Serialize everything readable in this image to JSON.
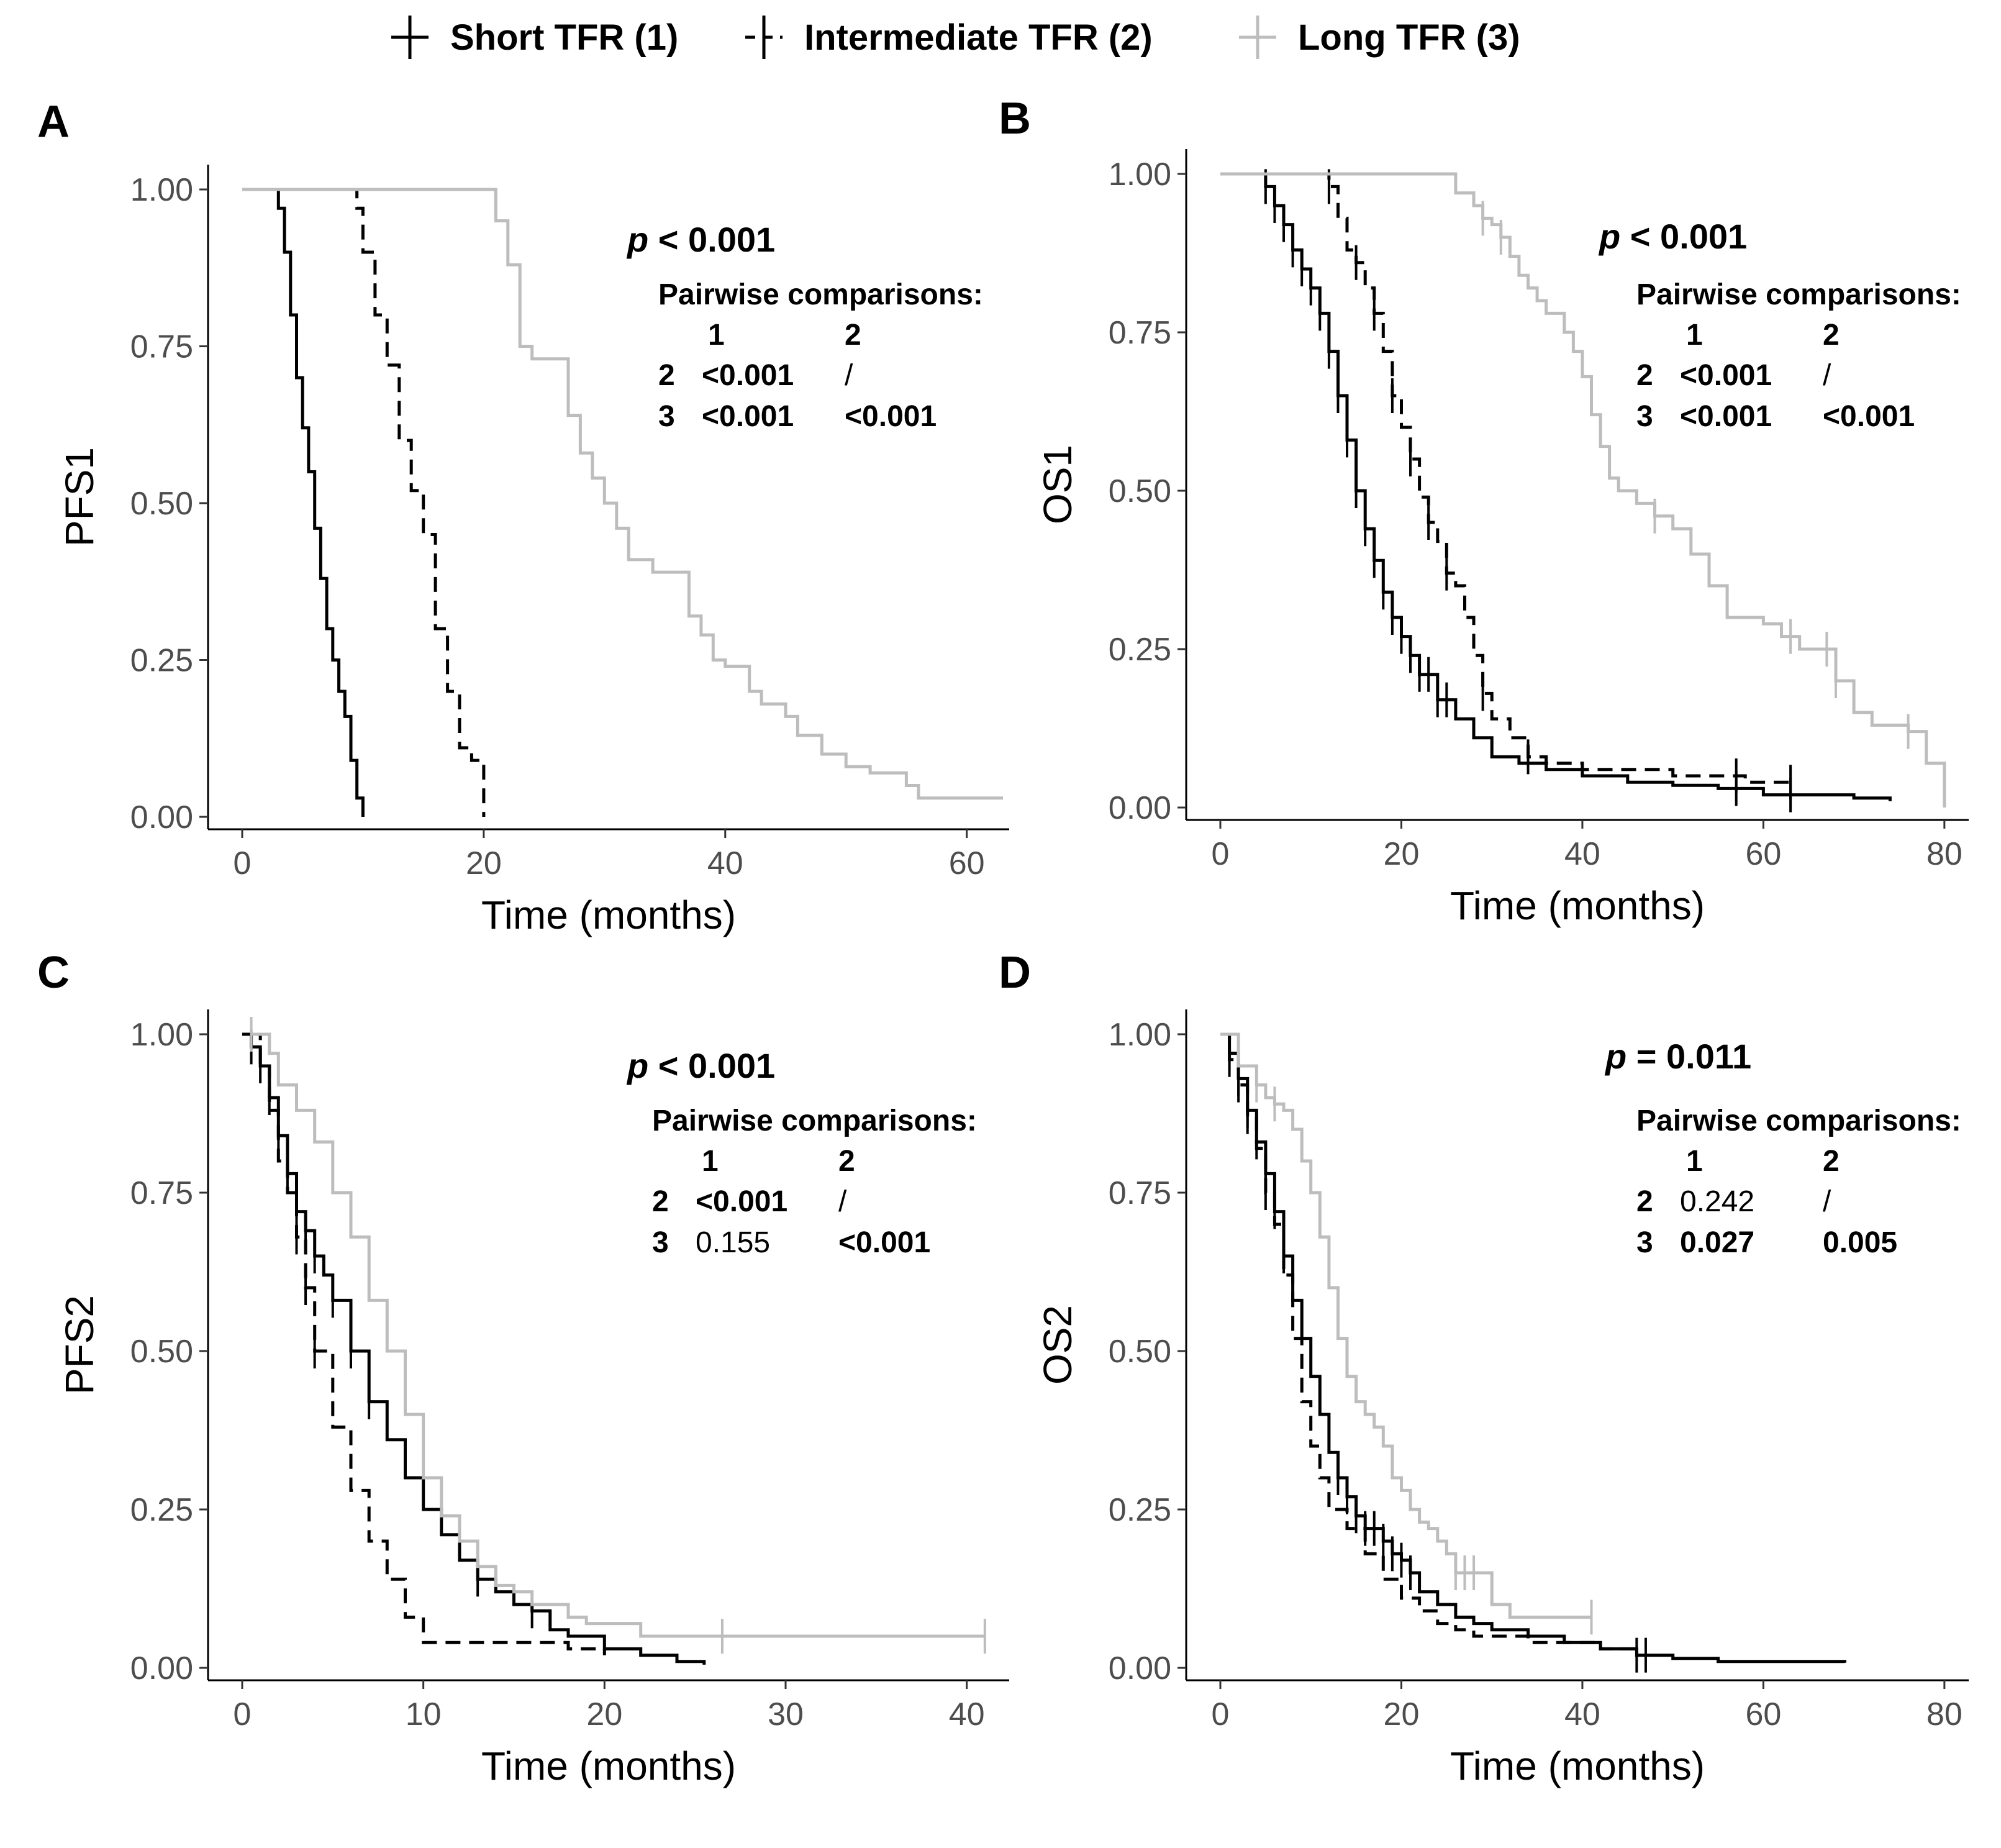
{
  "legend": [
    {
      "label": "Short TFR (1)",
      "color": "#000000",
      "dash": "solid"
    },
    {
      "label": "Intermediate TFR (2)",
      "color": "#000000",
      "dash": "dashed"
    },
    {
      "label": "Long TFR (3)",
      "color": "#bdbdbd",
      "dash": "solid"
    }
  ],
  "chart_data": [
    {
      "panel": "A",
      "type": "line",
      "title": "",
      "xlabel": "Time (months)",
      "ylabel": "PFS1",
      "xlim": [
        0,
        63
      ],
      "ylim": [
        0,
        1
      ],
      "xticks": [
        "0",
        "20",
        "40",
        "60"
      ],
      "yticks": [
        "0.00",
        "0.25",
        "0.50",
        "0.75",
        "1.00"
      ],
      "p_value": {
        "label": "p",
        "text": "< 0.001"
      },
      "pairwise": {
        "title": "Pairwise comparisons:",
        "cols": [
          "1",
          "2"
        ],
        "rows": [
          {
            "row": "2",
            "c1": "<0.001",
            "c2": "/"
          },
          {
            "row": "3",
            "c1": "<0.001",
            "c2": "<0.001"
          }
        ]
      },
      "series": [
        {
          "name": "Short TFR (1)",
          "x": [
            0,
            2.5,
            3,
            3.5,
            4,
            4.5,
            5,
            5.5,
            6,
            6.5,
            7,
            7.5,
            8,
            8.5,
            9,
            9.5,
            10
          ],
          "y": [
            1.0,
            1.0,
            0.97,
            0.9,
            0.8,
            0.7,
            0.62,
            0.55,
            0.46,
            0.38,
            0.3,
            0.25,
            0.2,
            0.16,
            0.09,
            0.03,
            0.0
          ],
          "censor_x": []
        },
        {
          "name": "Intermediate TFR (2)",
          "x": [
            9,
            9.5,
            10,
            11,
            12,
            13,
            14,
            15,
            16,
            17,
            18,
            19,
            20
          ],
          "y": [
            1.0,
            0.97,
            0.9,
            0.8,
            0.72,
            0.6,
            0.52,
            0.45,
            0.3,
            0.2,
            0.11,
            0.09,
            0.0
          ],
          "censor_x": []
        },
        {
          "name": "Long TFR (3)",
          "x": [
            0,
            20.5,
            21,
            22,
            23,
            24,
            26,
            27,
            28,
            29,
            30,
            31,
            32,
            34,
            37,
            38,
            39,
            40,
            42,
            43,
            45,
            46,
            48,
            50,
            52,
            55,
            56,
            63
          ],
          "y": [
            1.0,
            1.0,
            0.95,
            0.88,
            0.75,
            0.73,
            0.73,
            0.64,
            0.58,
            0.54,
            0.5,
            0.46,
            0.41,
            0.39,
            0.32,
            0.29,
            0.25,
            0.24,
            0.2,
            0.18,
            0.16,
            0.13,
            0.1,
            0.08,
            0.07,
            0.05,
            0.03,
            0.03
          ],
          "censor_x": []
        }
      ]
    },
    {
      "panel": "B",
      "type": "line",
      "title": "",
      "xlabel": "Time (months)",
      "ylabel": "OS1",
      "xlim": [
        0,
        82
      ],
      "ylim": [
        0,
        1
      ],
      "xticks": [
        "0",
        "20",
        "40",
        "60",
        "80"
      ],
      "yticks": [
        "0.00",
        "0.25",
        "0.50",
        "0.75",
        "1.00"
      ],
      "p_value": {
        "label": "p",
        "text": "< 0.001"
      },
      "pairwise": {
        "title": "Pairwise comparisons:",
        "cols": [
          "1",
          "2"
        ],
        "rows": [
          {
            "row": "2",
            "c1": "<0.001",
            "c2": "/"
          },
          {
            "row": "3",
            "c1": "<0.001",
            "c2": "<0.001"
          }
        ]
      },
      "series": [
        {
          "name": "Short TFR (1)",
          "x": [
            4.5,
            5,
            6,
            7,
            8,
            9,
            10,
            11,
            12,
            13,
            14,
            15,
            16,
            17,
            18,
            19,
            20,
            21,
            22,
            24,
            26,
            28,
            30,
            33,
            36,
            40,
            45,
            50,
            55,
            60,
            65,
            70,
            74
          ],
          "y": [
            1.0,
            0.98,
            0.95,
            0.92,
            0.88,
            0.85,
            0.82,
            0.78,
            0.72,
            0.65,
            0.58,
            0.5,
            0.44,
            0.39,
            0.34,
            0.3,
            0.27,
            0.24,
            0.21,
            0.17,
            0.14,
            0.11,
            0.08,
            0.07,
            0.06,
            0.05,
            0.04,
            0.035,
            0.03,
            0.02,
            0.02,
            0.015,
            0.01
          ],
          "censor_x": [
            5,
            6,
            7,
            8,
            9,
            10,
            11,
            12,
            13,
            14,
            15,
            16,
            17,
            18,
            19,
            20,
            21,
            22,
            23,
            24,
            25,
            57,
            63
          ]
        },
        {
          "name": "Intermediate TFR (2)",
          "x": [
            11,
            12,
            13,
            14,
            15,
            16,
            17,
            18,
            19,
            20,
            21,
            22,
            23,
            24,
            25,
            26,
            27,
            28,
            29,
            30,
            32,
            34,
            36,
            40,
            45,
            50,
            58,
            63
          ],
          "y": [
            1.0,
            0.98,
            0.93,
            0.88,
            0.86,
            0.82,
            0.78,
            0.72,
            0.65,
            0.6,
            0.55,
            0.49,
            0.45,
            0.42,
            0.37,
            0.35,
            0.3,
            0.24,
            0.18,
            0.14,
            0.11,
            0.08,
            0.07,
            0.06,
            0.06,
            0.05,
            0.04,
            0.04
          ],
          "censor_x": [
            12,
            15,
            17,
            19,
            21,
            23,
            25,
            29,
            34,
            57,
            63
          ]
        },
        {
          "name": "Long TFR (3)",
          "x": [
            0,
            24,
            26,
            28,
            29,
            30,
            31,
            32,
            33,
            34,
            35,
            36,
            38,
            39,
            40,
            41,
            42,
            43,
            44,
            46,
            48,
            50,
            52,
            54,
            56,
            58,
            60,
            62,
            64,
            66,
            68,
            70,
            72,
            75,
            76,
            78,
            79,
            80
          ],
          "y": [
            1.0,
            1.0,
            0.97,
            0.95,
            0.93,
            0.92,
            0.9,
            0.87,
            0.84,
            0.82,
            0.8,
            0.78,
            0.75,
            0.72,
            0.68,
            0.62,
            0.57,
            0.52,
            0.5,
            0.48,
            0.46,
            0.44,
            0.4,
            0.35,
            0.3,
            0.3,
            0.29,
            0.27,
            0.25,
            0.25,
            0.2,
            0.15,
            0.13,
            0.13,
            0.12,
            0.07,
            0.07,
            0.0
          ],
          "censor_x": [
            29,
            31,
            48,
            63,
            67,
            68,
            76
          ]
        }
      ]
    },
    {
      "panel": "C",
      "type": "line",
      "title": "",
      "xlabel": "Time (months)",
      "ylabel": "PFS2",
      "xlim": [
        0,
        42
      ],
      "ylim": [
        0,
        1
      ],
      "xticks": [
        "0",
        "10",
        "20",
        "30",
        "40"
      ],
      "yticks": [
        "0.00",
        "0.25",
        "0.50",
        "0.75",
        "1.00"
      ],
      "p_value": {
        "label": "p",
        "text": "< 0.001"
      },
      "pairwise": {
        "title": "Pairwise comparisons:",
        "cols": [
          "1",
          "2"
        ],
        "rows": [
          {
            "row": "2",
            "c1": "<0.001",
            "c2": "/"
          },
          {
            "row": "3",
            "c1": "0.155",
            "c2": "<0.001"
          }
        ]
      },
      "series": [
        {
          "name": "Short TFR (1)",
          "x": [
            0,
            0.5,
            1,
            1.5,
            2,
            2.5,
            3,
            3.5,
            4,
            4.5,
            5,
            6,
            7,
            8,
            9,
            10,
            11,
            12,
            13,
            14,
            15,
            16,
            17,
            18,
            20,
            22,
            24,
            25.5
          ],
          "y": [
            1.0,
            0.98,
            0.95,
            0.9,
            0.84,
            0.78,
            0.72,
            0.69,
            0.65,
            0.62,
            0.58,
            0.5,
            0.42,
            0.36,
            0.3,
            0.25,
            0.21,
            0.17,
            0.14,
            0.12,
            0.1,
            0.09,
            0.06,
            0.05,
            0.03,
            0.02,
            0.01,
            0.005
          ],
          "censor_x": [
            0.5,
            1,
            1.5,
            2,
            2.5,
            3,
            3.5,
            4,
            5,
            6,
            7,
            13,
            16
          ]
        },
        {
          "name": "Intermediate TFR (2)",
          "x": [
            0.5,
            1,
            1.5,
            2,
            2.5,
            3,
            3.5,
            4,
            5,
            6,
            7,
            8,
            9,
            10,
            12,
            14,
            16,
            18,
            20
          ],
          "y": [
            1.0,
            0.95,
            0.88,
            0.8,
            0.75,
            0.68,
            0.6,
            0.5,
            0.38,
            0.28,
            0.2,
            0.14,
            0.08,
            0.04,
            0.04,
            0.04,
            0.04,
            0.03,
            0.02
          ],
          "censor_x": [
            3,
            3.5,
            4
          ]
        },
        {
          "name": "Long TFR (3)",
          "x": [
            0.5,
            1,
            1.5,
            2,
            3,
            4,
            5,
            6,
            7,
            8,
            9,
            10,
            11,
            12,
            13,
            14,
            15,
            16,
            17,
            18,
            19,
            20,
            22,
            24,
            26,
            30,
            35,
            41
          ],
          "y": [
            1.0,
            1.0,
            0.97,
            0.92,
            0.88,
            0.83,
            0.75,
            0.68,
            0.58,
            0.5,
            0.4,
            0.3,
            0.24,
            0.2,
            0.16,
            0.13,
            0.12,
            0.1,
            0.1,
            0.08,
            0.07,
            0.07,
            0.05,
            0.05,
            0.05,
            0.05,
            0.05,
            0.05
          ],
          "censor_x": [
            0.5,
            26.5,
            41
          ]
        }
      ]
    },
    {
      "panel": "D",
      "type": "line",
      "title": "",
      "xlabel": "Time (months)",
      "ylabel": "OS2",
      "xlim": [
        0,
        82
      ],
      "ylim": [
        0,
        1
      ],
      "xticks": [
        "0",
        "20",
        "40",
        "60",
        "80"
      ],
      "yticks": [
        "0.00",
        "0.25",
        "0.50",
        "0.75",
        "1.00"
      ],
      "p_value": {
        "label": "p",
        "text": "= 0.011"
      },
      "pairwise": {
        "title": "Pairwise comparisons:",
        "cols": [
          "1",
          "2"
        ],
        "rows": [
          {
            "row": "2",
            "c1": "0.242",
            "c2": "/"
          },
          {
            "row": "3",
            "c1": "0.027",
            "c2": "0.005"
          }
        ]
      },
      "series": [
        {
          "name": "Short TFR (1)",
          "x": [
            0,
            1,
            2,
            3,
            4,
            5,
            6,
            7,
            8,
            9,
            10,
            11,
            12,
            13,
            14,
            15,
            16,
            17,
            18,
            19,
            20,
            21,
            22,
            24,
            26,
            28,
            30,
            34,
            38,
            42,
            46,
            50,
            55,
            60,
            65,
            69
          ],
          "y": [
            1.0,
            0.97,
            0.93,
            0.88,
            0.83,
            0.78,
            0.72,
            0.65,
            0.58,
            0.52,
            0.46,
            0.4,
            0.34,
            0.3,
            0.27,
            0.24,
            0.22,
            0.22,
            0.2,
            0.18,
            0.17,
            0.15,
            0.12,
            0.1,
            0.08,
            0.07,
            0.06,
            0.05,
            0.04,
            0.03,
            0.02,
            0.015,
            0.01,
            0.01,
            0.01,
            0.008
          ],
          "censor_x": [
            1,
            2,
            3,
            4,
            5,
            6,
            7,
            13,
            14,
            15,
            16,
            17,
            18,
            19,
            20,
            21,
            46,
            47
          ]
        },
        {
          "name": "Intermediate TFR (2)",
          "x": [
            0,
            1,
            2,
            3,
            4,
            5,
            6,
            7,
            8,
            9,
            10,
            11,
            12,
            14,
            16,
            18,
            20,
            22,
            24,
            26,
            28,
            30,
            34,
            38,
            42,
            46
          ],
          "y": [
            1.0,
            0.96,
            0.92,
            0.87,
            0.82,
            0.75,
            0.7,
            0.62,
            0.52,
            0.42,
            0.35,
            0.3,
            0.25,
            0.22,
            0.18,
            0.14,
            0.11,
            0.09,
            0.07,
            0.06,
            0.05,
            0.05,
            0.04,
            0.04,
            0.03,
            0.03
          ],
          "censor_x": [
            1,
            2,
            3,
            5
          ]
        },
        {
          "name": "Long TFR (3)",
          "x": [
            0,
            2,
            4,
            5,
            6,
            7,
            8,
            9,
            10,
            11,
            12,
            13,
            14,
            15,
            16,
            17,
            18,
            19,
            20,
            21,
            22,
            23,
            24,
            25,
            26,
            28,
            30,
            32,
            36,
            41
          ],
          "y": [
            1.0,
            0.95,
            0.92,
            0.9,
            0.89,
            0.88,
            0.85,
            0.8,
            0.75,
            0.68,
            0.6,
            0.52,
            0.46,
            0.42,
            0.4,
            0.38,
            0.35,
            0.3,
            0.28,
            0.25,
            0.23,
            0.22,
            0.2,
            0.18,
            0.15,
            0.15,
            0.1,
            0.08,
            0.08,
            0.08
          ],
          "censor_x": [
            4,
            6,
            26,
            27,
            28,
            41
          ]
        }
      ]
    }
  ]
}
